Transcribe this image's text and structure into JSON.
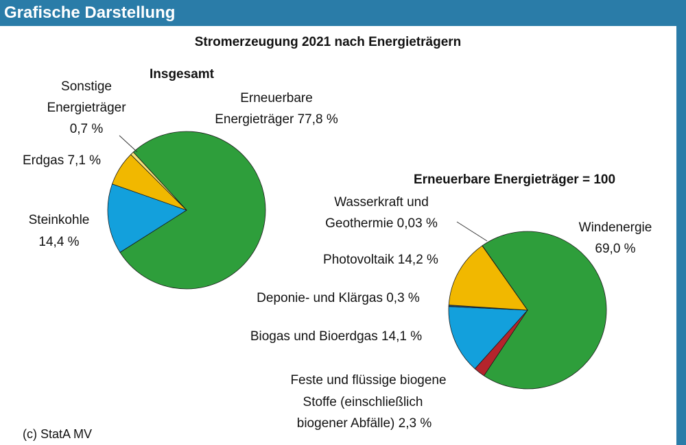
{
  "header": {
    "title": "Grafische Darstellung"
  },
  "footer": {
    "copyright": "(c) StatA MV"
  },
  "chart_data": [
    {
      "type": "pie",
      "title": "Stromerzeugung 2021 nach Energieträgern",
      "subtitle": "Insgesamt",
      "slices": [
        {
          "label": "Erneuerbare Energieträger",
          "value": 77.8,
          "value_label": "77,8 %",
          "color": "#2e9e3b"
        },
        {
          "label": "Steinkohle",
          "value": 14.4,
          "value_label": "14,4 %",
          "color": "#13a0dc"
        },
        {
          "label": "Erdgas",
          "value": 7.1,
          "value_label": "7,1 %",
          "color": "#f1b800"
        },
        {
          "label": "Sonstige Energieträger",
          "value": 0.7,
          "value_label": "0,7 %",
          "color": "#f6e27a"
        }
      ]
    },
    {
      "type": "pie",
      "subtitle": "Erneuerbare Energieträger = 100",
      "slices": [
        {
          "label": "Windenergie",
          "value": 69.0,
          "value_label": "69,0 %",
          "color": "#2e9e3b"
        },
        {
          "label": "Feste und flüssige biogene Stoffe (einschließlich biogener Abfälle)",
          "value": 2.3,
          "value_label": "2,3 %",
          "color": "#b5242c"
        },
        {
          "label": "Biogas und Bioerdgas",
          "value": 14.1,
          "value_label": "14,1 %",
          "color": "#13a0dc"
        },
        {
          "label": "Deponie- und Klärgas",
          "value": 0.3,
          "value_label": "0,3 %",
          "color": "#1f4f7a"
        },
        {
          "label": "Photovoltaik",
          "value": 14.2,
          "value_label": "14,2 %",
          "color": "#f1b800"
        },
        {
          "label": "Wasserkraft und Geothermie",
          "value": 0.03,
          "value_label": "0,03 %",
          "color": "#9ad0e8"
        }
      ]
    }
  ],
  "text": {
    "title": "Stromerzeugung 2021 nach Energieträgern",
    "pie1_heading": "Insgesamt",
    "sonstige_1": "Sonstige",
    "sonstige_2": "Energieträger",
    "sonstige_3": "0,7 %",
    "erneuerbare_1": "Erneuerbare",
    "erneuerbare_2": "Energieträger 77,8 %",
    "erdgas": "Erdgas 7,1 %",
    "steinkohle_1": "Steinkohle",
    "steinkohle_2": "14,4 %",
    "pie2_heading": "Erneuerbare Energieträger = 100",
    "wasser_1": "Wasserkraft und",
    "wasser_2": "Geothermie 0,03 %",
    "wind_1": "Windenergie",
    "wind_2": "69,0 %",
    "pv": "Photovoltaik 14,2 %",
    "deponie": "Deponie- und Klärgas 0,3 %",
    "biogas": "Biogas und Bioerdgas 14,1 %",
    "feste_1": "Feste und flüssige biogene",
    "feste_2": "Stoffe (einschließlich",
    "feste_3": "biogener Abfälle) 2,3 %"
  }
}
